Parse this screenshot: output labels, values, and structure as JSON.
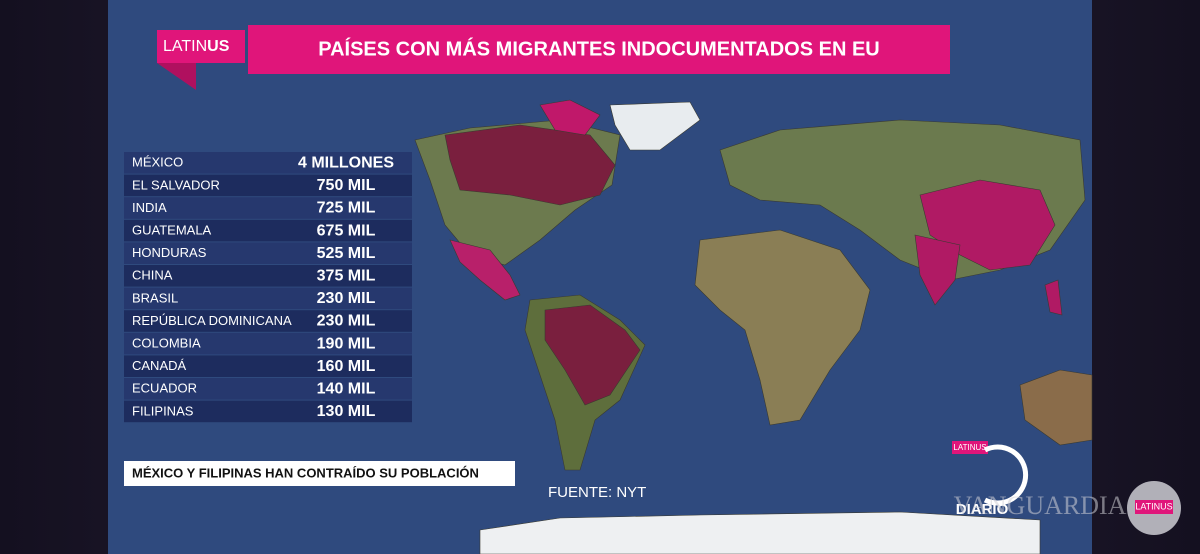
{
  "header": {
    "logo": {
      "part1": "LATIN",
      "part2": "US"
    },
    "title": "PAÍSES CON MÁS MIGRANTES INDOCUMENTADOS EN EU"
  },
  "table": {
    "rows": [
      [
        "MÉXICO",
        "4 MILLONES"
      ],
      [
        "EL SALVADOR",
        "750 MIL"
      ],
      [
        "INDIA",
        "725 MIL"
      ],
      [
        "GUATEMALA",
        "675 MIL"
      ],
      [
        "HONDURAS",
        "525 MIL"
      ],
      [
        "CHINA",
        "375 MIL"
      ],
      [
        "BRASIL",
        "230 MIL"
      ],
      [
        "REPÚBLICA DOMINICANA",
        "230 MIL"
      ],
      [
        "COLOMBIA",
        "190 MIL"
      ],
      [
        "CANADÁ",
        "160 MIL"
      ],
      [
        "ECUADOR",
        "140 MIL"
      ],
      [
        "FILIPINAS",
        "130 MIL"
      ]
    ]
  },
  "note": "MÉXICO Y FILIPINAS  HAN CONTRAÍDO SU POBLACIÓN",
  "source": "FUENTE: NYT",
  "corner_logo": {
    "small": "LATINUS",
    "show": "DIARIO"
  },
  "watermark": {
    "text": "VANGUARDIA",
    "badge": "LATINUS"
  }
}
